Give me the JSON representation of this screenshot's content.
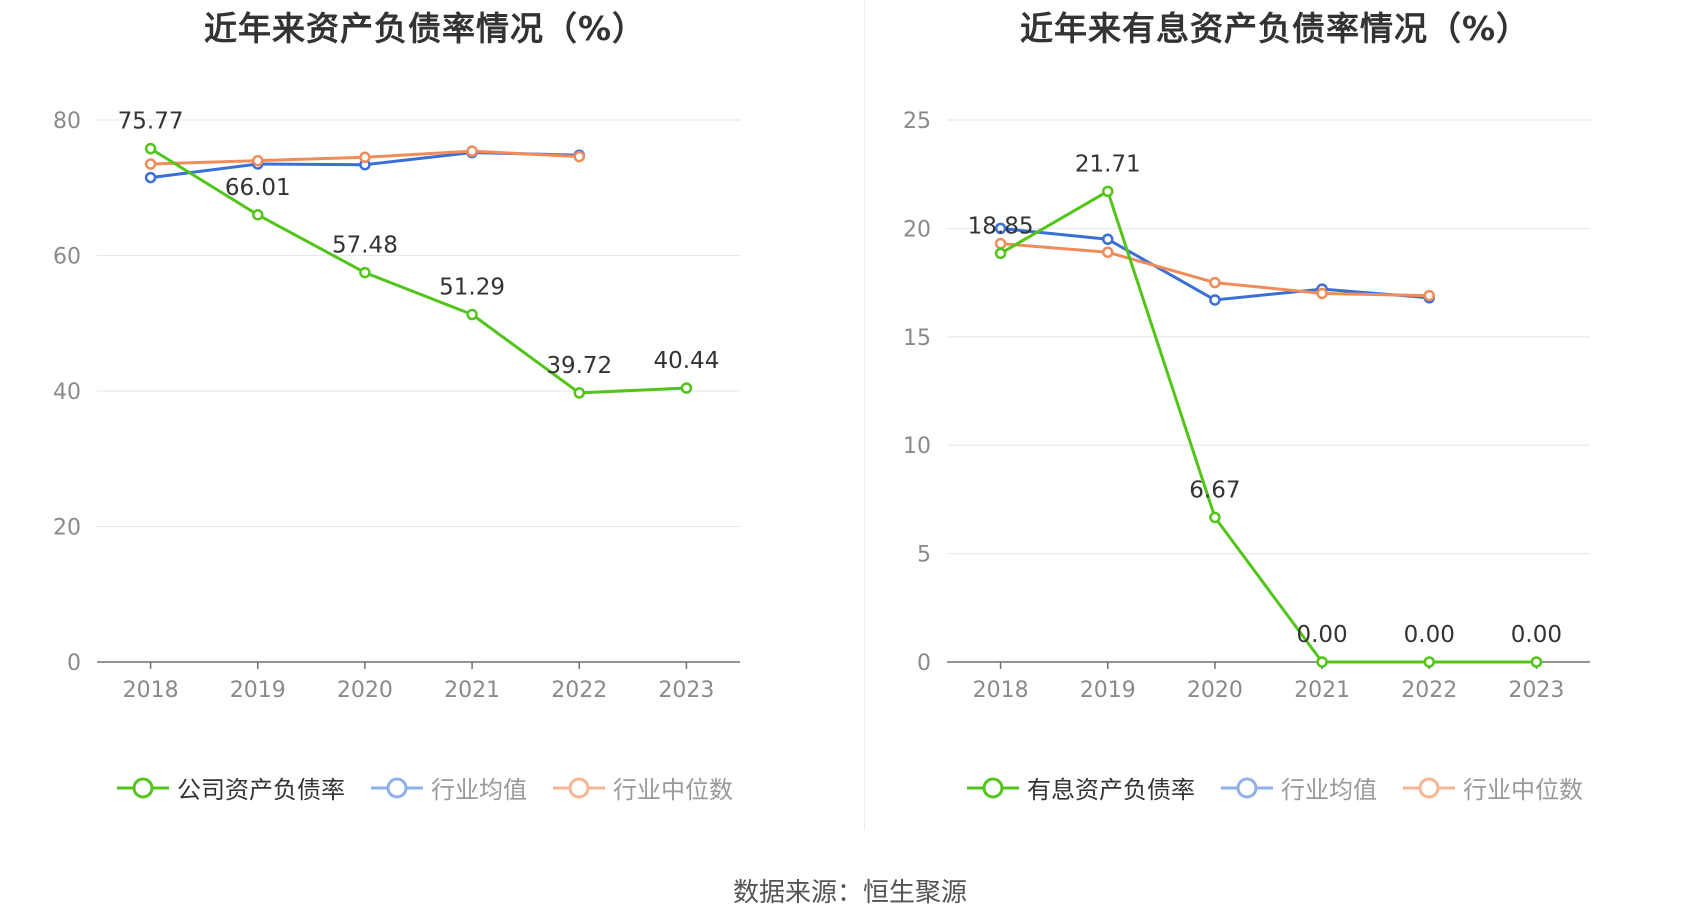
{
  "source": "数据来源：恒生聚源",
  "chart_data": [
    {
      "type": "line",
      "title": "近年来资产负债率情况（%）",
      "categories": [
        "2018",
        "2019",
        "2020",
        "2021",
        "2022",
        "2023"
      ],
      "ylim": [
        0,
        80
      ],
      "yticks": [
        0,
        20,
        40,
        60,
        80
      ],
      "grid": true,
      "legend_position": "bottom",
      "series": [
        {
          "name": "公司资产负债率",
          "color": "#52c41a",
          "values": [
            75.77,
            66.01,
            57.48,
            51.29,
            39.72,
            40.44
          ],
          "labels": [
            "75.77",
            "66.01",
            "57.48",
            "51.29",
            "39.72",
            "40.44"
          ]
        },
        {
          "name": "行业均值",
          "color": "#3a6fd8",
          "values": [
            71.5,
            73.5,
            73.4,
            75.2,
            74.8,
            null
          ]
        },
        {
          "name": "行业中位数",
          "color": "#f08c5a",
          "values": [
            73.5,
            74.0,
            74.5,
            75.4,
            74.6,
            null
          ]
        }
      ]
    },
    {
      "type": "line",
      "title": "近年来有息资产负债率情况（%）",
      "categories": [
        "2018",
        "2019",
        "2020",
        "2021",
        "2022",
        "2023"
      ],
      "ylim": [
        0,
        25
      ],
      "yticks": [
        0,
        5,
        10,
        15,
        20,
        25
      ],
      "grid": true,
      "legend_position": "bottom",
      "series": [
        {
          "name": "有息资产负债率",
          "color": "#52c41a",
          "values": [
            18.85,
            21.71,
            6.67,
            0.0,
            0.0,
            0.0
          ],
          "labels": [
            "18.85",
            "21.71",
            "6.67",
            "0.00",
            "0.00",
            "0.00"
          ]
        },
        {
          "name": "行业均值",
          "color": "#3a6fd8",
          "values": [
            20.0,
            19.5,
            16.7,
            17.2,
            16.8,
            null
          ]
        },
        {
          "name": "行业中位数",
          "color": "#f08c5a",
          "values": [
            19.3,
            18.9,
            17.5,
            17.0,
            16.9,
            null
          ]
        }
      ]
    }
  ]
}
